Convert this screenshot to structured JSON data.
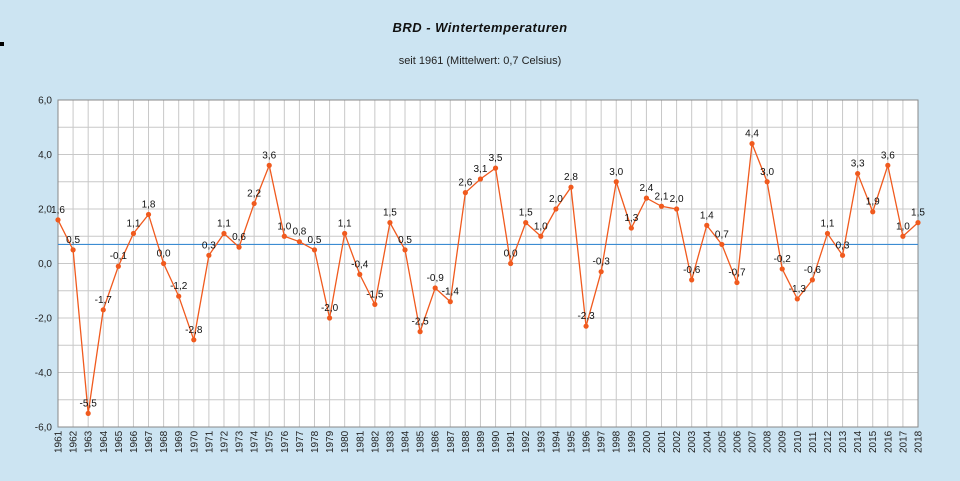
{
  "chart_data": {
    "type": "line",
    "title": "BRD - Wintertemperaturen",
    "subtitle": "seit 1961 (Mittelwert: 0,7 Celsius)",
    "mean": 0.7,
    "ylim": [
      -6,
      6
    ],
    "yticks": [
      6,
      4,
      2,
      0,
      -2,
      -4,
      -6
    ],
    "grid": true,
    "colors": {
      "series": "#f05a1e",
      "mean_line": "#3c8cd2",
      "plot_bg": "#ffffff",
      "grid": "#c8c8c8"
    },
    "x": [
      1961,
      1962,
      1963,
      1964,
      1965,
      1966,
      1967,
      1968,
      1969,
      1970,
      1971,
      1972,
      1973,
      1974,
      1975,
      1976,
      1977,
      1978,
      1979,
      1980,
      1981,
      1982,
      1983,
      1984,
      1985,
      1986,
      1987,
      1988,
      1989,
      1990,
      1991,
      1992,
      1993,
      1994,
      1995,
      1996,
      1997,
      1998,
      1999,
      2000,
      2001,
      2002,
      2003,
      2004,
      2005,
      2006,
      2007,
      2008,
      2009,
      2010,
      2011,
      2012,
      2013,
      2014,
      2015,
      2016,
      2017,
      2018
    ],
    "values": [
      1.6,
      0.5,
      -5.5,
      -1.7,
      -0.1,
      1.1,
      1.8,
      0.0,
      -1.2,
      -2.8,
      0.3,
      1.1,
      0.6,
      2.2,
      3.6,
      1.0,
      0.8,
      0.5,
      -2.0,
      1.1,
      -0.4,
      -1.5,
      1.5,
      0.5,
      -2.5,
      -0.9,
      -1.4,
      2.6,
      3.1,
      3.5,
      0.0,
      1.5,
      1.0,
      2.0,
      2.8,
      -2.3,
      -0.3,
      3.0,
      1.3,
      2.4,
      2.1,
      2.0,
      -0.6,
      1.4,
      0.7,
      -0.7,
      4.4,
      3.0,
      -0.2,
      -1.3,
      -0.6,
      1.1,
      0.3,
      3.3,
      1.9,
      3.6,
      1.0,
      1.5
    ]
  }
}
